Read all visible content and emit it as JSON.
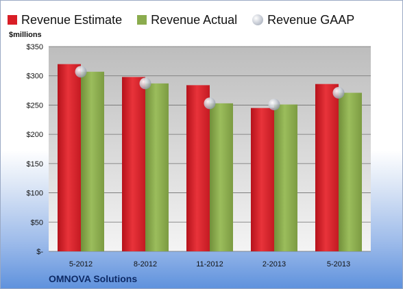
{
  "legend": [
    {
      "label": "Revenue Estimate",
      "color": "#d91e26",
      "icon": "square"
    },
    {
      "label": "Revenue Actual",
      "color": "#8bac4e",
      "icon": "square"
    },
    {
      "label": "Revenue GAAP",
      "color": "#c7cbd3",
      "icon": "circle-marker"
    }
  ],
  "ylabel": "$millions",
  "company": "OMNOVA Solutions",
  "chart_data": {
    "type": "bar",
    "categories": [
      "5-2012",
      "8-2012",
      "11-2012",
      "2-2013",
      "5-2013"
    ],
    "series": [
      {
        "name": "Revenue Estimate",
        "color": "#d91e26",
        "values": [
          320,
          298,
          284,
          245,
          286
        ]
      },
      {
        "name": "Revenue Actual",
        "color": "#8bac4e",
        "values": [
          307,
          287,
          253,
          251,
          271
        ]
      },
      {
        "name": "Revenue GAAP",
        "color": "#c7cbd3",
        "type": "marker",
        "values": [
          307,
          287,
          253,
          251,
          271
        ]
      }
    ],
    "ylabel": "$millions",
    "ylim": [
      0,
      350
    ],
    "yticks": [
      0,
      50,
      100,
      150,
      200,
      250,
      300,
      350
    ],
    "ytick_labels": [
      "$-",
      "$50",
      "$100",
      "$150",
      "$200",
      "$250",
      "$300",
      "$350"
    ],
    "grid": true,
    "legend_position": "top"
  }
}
